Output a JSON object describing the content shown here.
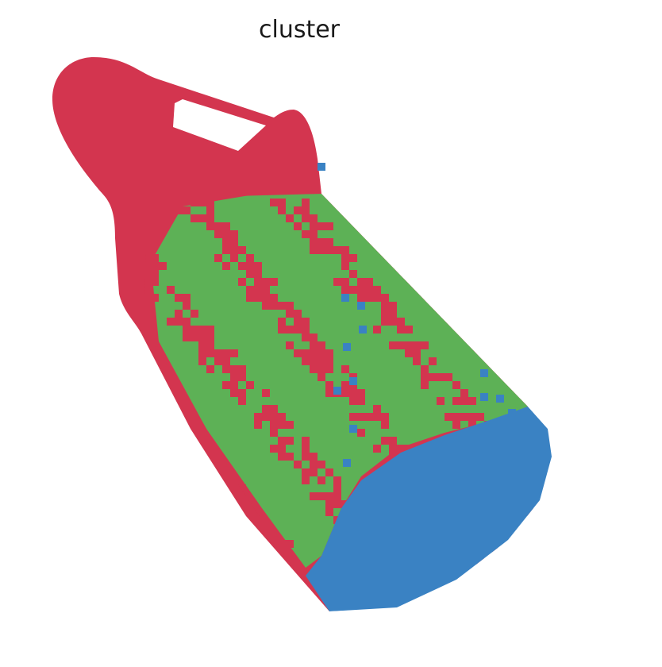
{
  "title": "cluster",
  "colors": {
    "cluster_red": "#d3354f",
    "cluster_green": "#5db156",
    "cluster_blue": "#3a82c3",
    "background": "#ffffff"
  },
  "chart_data": {
    "type": "heatmap",
    "title": "cluster",
    "xlabel": "",
    "ylabel": "",
    "grid": false,
    "axes_visible": false,
    "clusters": [
      {
        "color": "#d3354f"
      },
      {
        "color": "#5db156"
      },
      {
        "color": "#3a82c3"
      }
    ]
  }
}
